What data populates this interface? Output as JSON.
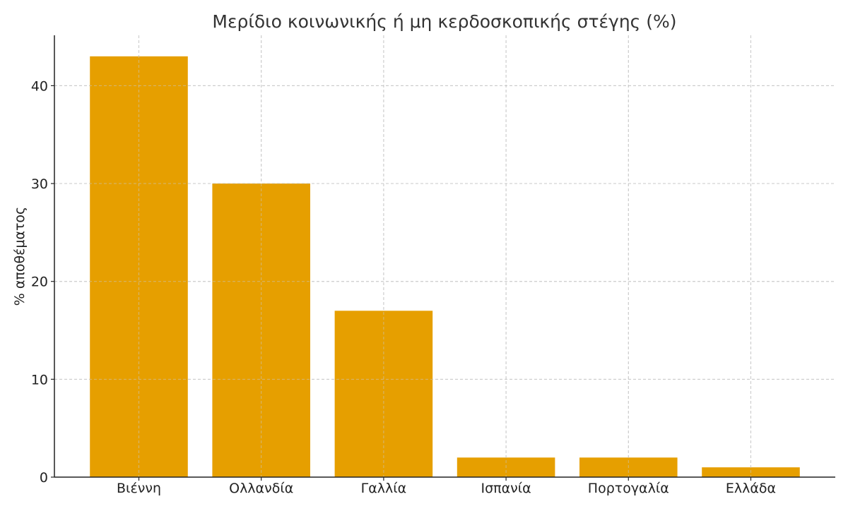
{
  "chart_data": {
    "type": "bar",
    "title": "Μερίδιο κοινωνικής ή μη κερδοσκοπικής στέγης (%)",
    "xlabel": "",
    "ylabel": "% αποθέματος",
    "categories": [
      "Βιέννη",
      "Ολλανδία",
      "Γαλλία",
      "Ισπανία",
      "Πορτογαλία",
      "Ελλάδα"
    ],
    "values": [
      43,
      30,
      17,
      2,
      2,
      1
    ],
    "ylim": [
      0,
      45.15
    ],
    "yticks": [
      0,
      10,
      20,
      30,
      40
    ],
    "grid": true,
    "bar_color": "#E69F00"
  }
}
